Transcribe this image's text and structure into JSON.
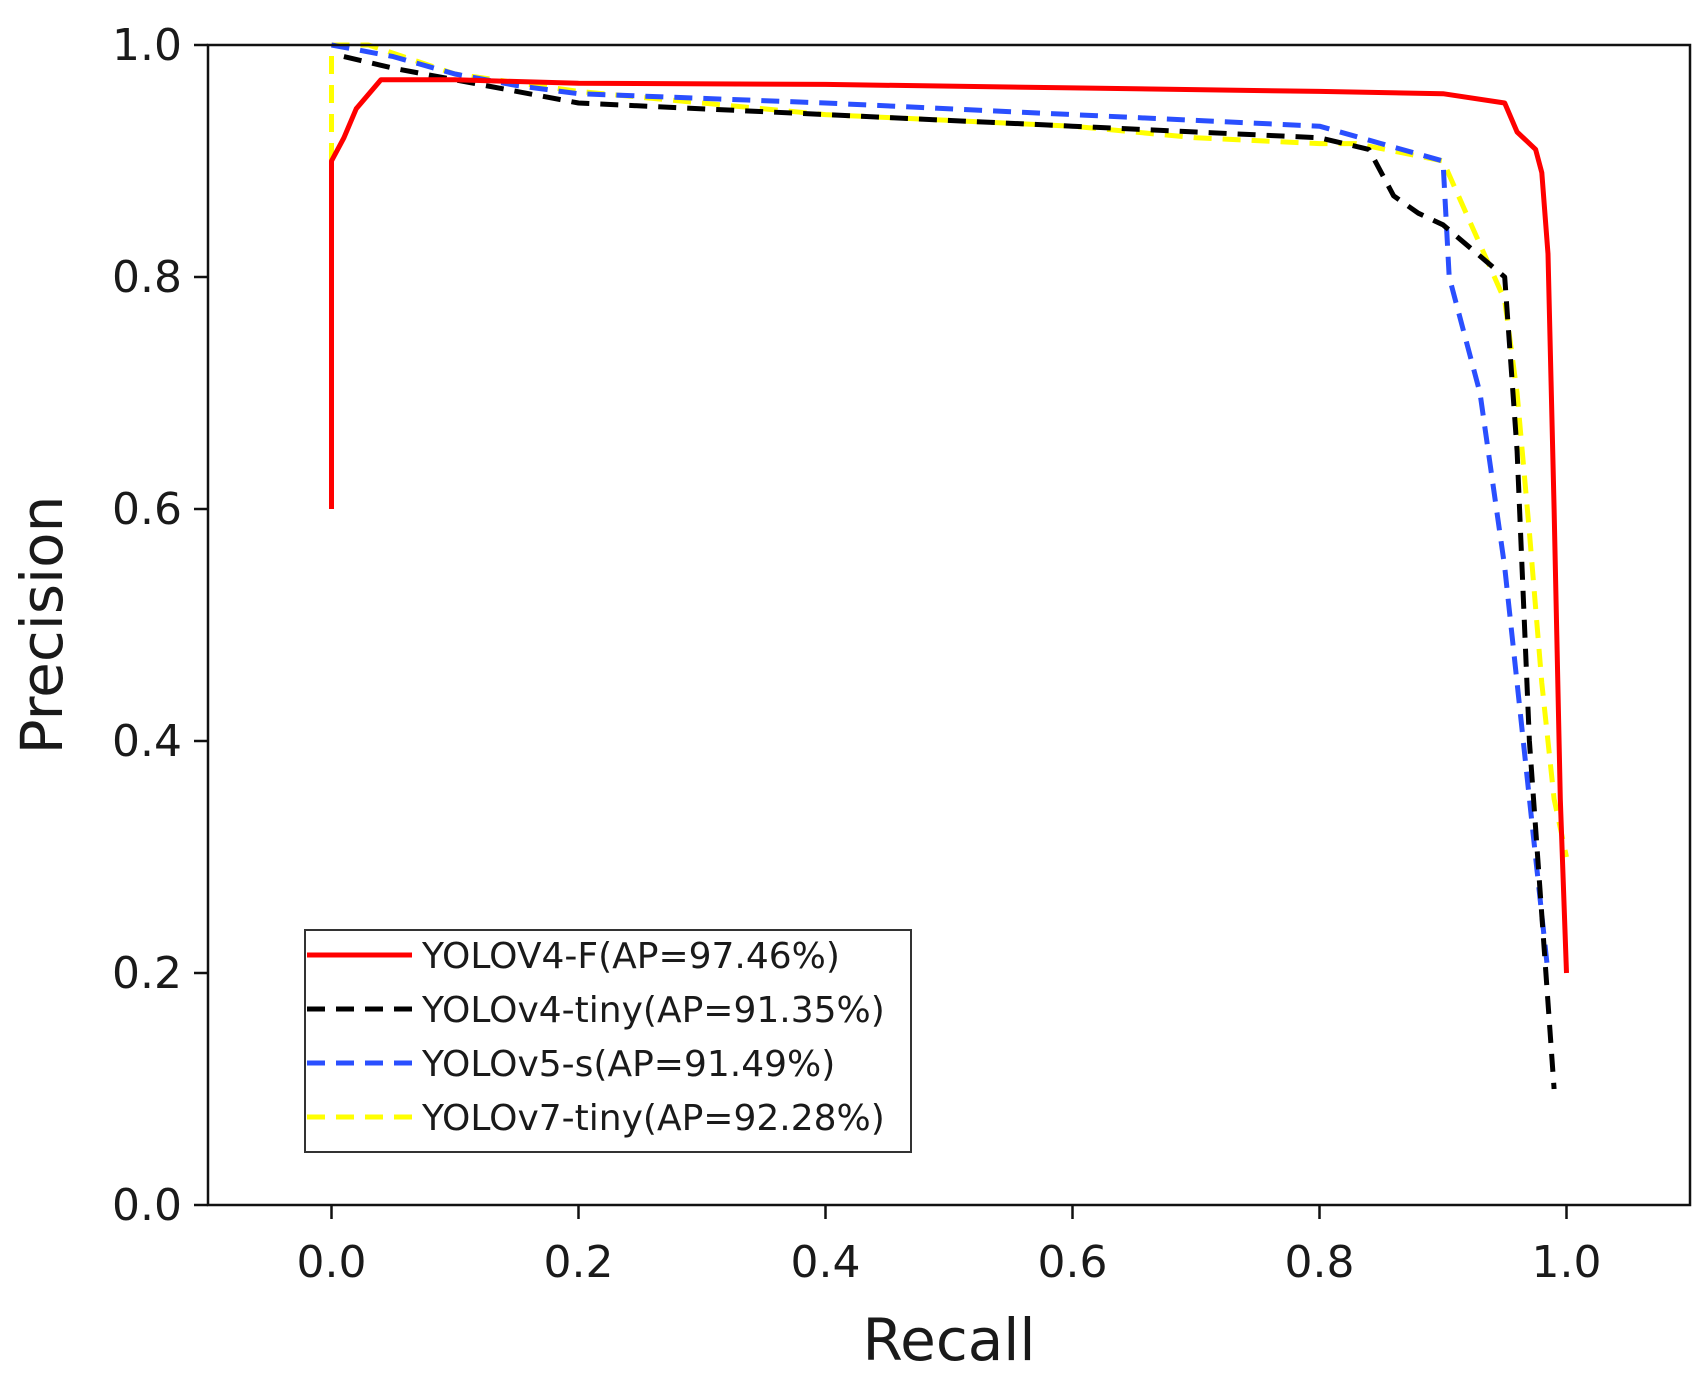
{
  "chart_data": {
    "type": "line",
    "title": "",
    "xlabel": "Recall",
    "ylabel": "Precision",
    "xlim": [
      -0.1,
      1.1
    ],
    "ylim": [
      0.0,
      1.0
    ],
    "xticks": [
      0.0,
      0.2,
      0.4,
      0.6,
      0.8,
      1.0
    ],
    "yticks": [
      0.0,
      0.2,
      0.4,
      0.6,
      0.8,
      1.0
    ],
    "xtick_labels": [
      "0.0",
      "0.2",
      "0.4",
      "0.6",
      "0.8",
      "1.0"
    ],
    "ytick_labels": [
      "0.0",
      "0.2",
      "0.4",
      "0.6",
      "0.8",
      "1.0"
    ],
    "grid": false,
    "legend_position": "bottom-left",
    "series": [
      {
        "name": "YOLOV4-F(AP=97.46%)",
        "color": "#ff0000",
        "style": "solid",
        "x": [
          0.0,
          0.0,
          0.01,
          0.02,
          0.04,
          0.1,
          0.2,
          0.4,
          0.6,
          0.8,
          0.9,
          0.95,
          0.96,
          0.975,
          0.98,
          0.985,
          0.99,
          0.995,
          1.0
        ],
        "y": [
          0.6,
          0.9,
          0.92,
          0.945,
          0.97,
          0.97,
          0.967,
          0.966,
          0.963,
          0.96,
          0.958,
          0.95,
          0.925,
          0.91,
          0.89,
          0.82,
          0.6,
          0.35,
          0.2
        ]
      },
      {
        "name": "YOLOv4-tiny(AP=91.35%)",
        "color": "#000000",
        "style": "dashed",
        "x": [
          0.01,
          0.05,
          0.1,
          0.15,
          0.2,
          0.4,
          0.6,
          0.7,
          0.8,
          0.84,
          0.86,
          0.88,
          0.9,
          0.95,
          0.96,
          0.97,
          0.98,
          0.99
        ],
        "y": [
          0.99,
          0.98,
          0.97,
          0.96,
          0.95,
          0.94,
          0.93,
          0.925,
          0.92,
          0.91,
          0.87,
          0.855,
          0.845,
          0.8,
          0.65,
          0.4,
          0.25,
          0.1
        ]
      },
      {
        "name": "YOLOv5-s(AP=91.49%)",
        "color": "#2a4fff",
        "style": "dashed",
        "x": [
          0.0,
          0.05,
          0.1,
          0.15,
          0.2,
          0.4,
          0.6,
          0.8,
          0.85,
          0.9,
          0.905,
          0.93,
          0.95,
          0.96,
          0.975,
          0.985
        ],
        "y": [
          1.0,
          0.99,
          0.975,
          0.965,
          0.958,
          0.95,
          0.94,
          0.93,
          0.915,
          0.9,
          0.8,
          0.7,
          0.55,
          0.45,
          0.3,
          0.2
        ]
      },
      {
        "name": "YOLOv7-tiny(AP=92.28%)",
        "color": "#ffff00",
        "style": "dashed",
        "x": [
          0.0,
          0.0,
          0.0,
          0.03,
          0.1,
          0.2,
          0.3,
          0.4,
          0.5,
          0.6,
          0.7,
          0.8,
          0.83,
          0.9,
          0.95,
          0.96,
          0.97,
          0.98,
          0.99,
          1.0
        ],
        "y": [
          0.8,
          0.9,
          1.0,
          1.0,
          0.975,
          0.96,
          0.95,
          0.94,
          0.935,
          0.93,
          0.92,
          0.915,
          0.915,
          0.9,
          0.78,
          0.7,
          0.58,
          0.45,
          0.35,
          0.3
        ]
      }
    ]
  }
}
